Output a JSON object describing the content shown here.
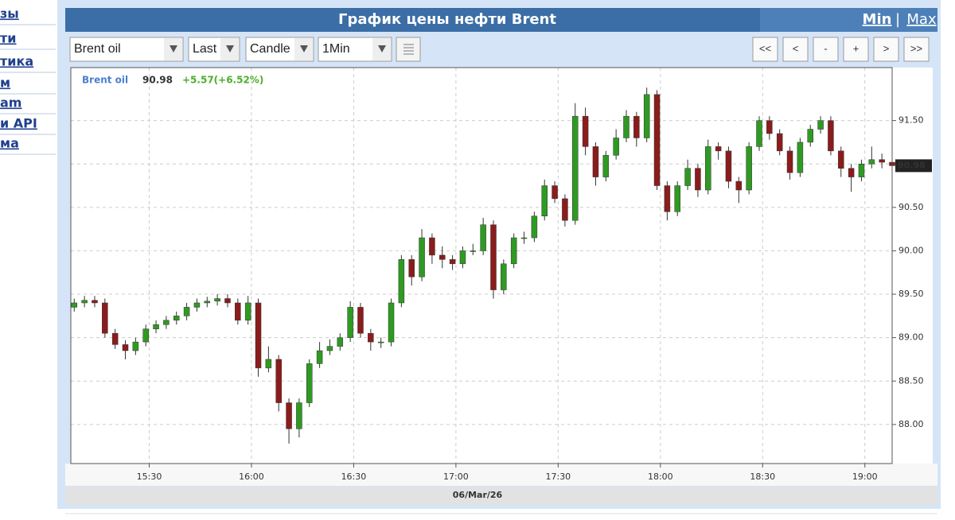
{
  "sidebar": {
    "links": [
      "зы",
      "ти",
      "тика",
      "м",
      "am",
      "и API",
      "ма"
    ]
  },
  "header": {
    "title": "График цены нефти Brent",
    "min": "Min",
    "separator": "|",
    "max": "Max"
  },
  "toolbar": {
    "selects": [
      "Brent oil",
      "Last",
      "Candle",
      "1Min"
    ],
    "buttons": [
      "<<",
      "<",
      "-",
      "+",
      ">",
      ">>"
    ]
  },
  "chart_data": {
    "type": "candlestick",
    "change_label": "+5.57(+6.52%)",
    "x_axis_label": "06/Mar/26",
    "x": [
      "15:08",
      "15:11",
      "15:14",
      "15:17",
      "15:20",
      "15:23",
      "15:26",
      "15:29",
      "15:32",
      "15:35",
      "15:38",
      "15:41",
      "15:44",
      "15:47",
      "15:50",
      "15:53",
      "15:56",
      "15:59",
      "16:02",
      "16:05",
      "16:08",
      "16:11",
      "16:14",
      "16:17",
      "16:20",
      "16:23",
      "16:26",
      "16:29",
      "16:32",
      "16:35",
      "16:38",
      "16:41",
      "16:44",
      "16:47",
      "16:50",
      "16:53",
      "16:56",
      "16:59",
      "17:02",
      "17:05",
      "17:08",
      "17:11",
      "17:14",
      "17:17",
      "17:20",
      "17:23",
      "17:26",
      "17:29",
      "17:32",
      "17:35",
      "17:38",
      "17:41",
      "17:44",
      "17:47",
      "17:50",
      "17:53",
      "17:56",
      "17:59",
      "18:02",
      "18:05",
      "18:08",
      "18:11",
      "18:14",
      "18:17",
      "18:20",
      "18:23",
      "18:26",
      "18:29",
      "18:32",
      "18:35",
      "18:38",
      "18:41",
      "18:44",
      "18:47",
      "18:50",
      "18:53",
      "18:56",
      "18:59",
      "19:02",
      "19:05",
      "19:08"
    ],
    "series": [
      {
        "name": "Brent oil",
        "up_color": "#2f9a22",
        "down_color": "#8b1c1c",
        "open": [
          89.35,
          89.4,
          89.43,
          89.4,
          89.05,
          88.92,
          88.85,
          88.95,
          89.1,
          89.15,
          89.2,
          89.25,
          89.35,
          89.4,
          89.42,
          89.45,
          89.4,
          89.2,
          89.4,
          88.65,
          88.75,
          88.25,
          87.95,
          88.25,
          88.7,
          88.85,
          88.9,
          89.0,
          89.35,
          89.05,
          88.95,
          88.95,
          89.4,
          89.9,
          89.7,
          90.15,
          89.95,
          89.9,
          89.85,
          90.0,
          90.0,
          90.3,
          89.55,
          89.85,
          90.15,
          90.15,
          90.4,
          90.75,
          90.6,
          90.35,
          91.55,
          91.2,
          90.85,
          91.1,
          91.3,
          91.55,
          91.3,
          91.8,
          90.75,
          90.45,
          90.75,
          90.95,
          90.7,
          91.2,
          91.15,
          90.8,
          90.7,
          91.2,
          91.5,
          91.35,
          91.15,
          90.9,
          91.25,
          91.4,
          91.5,
          91.15,
          90.95,
          90.85,
          91.0,
          91.05,
          91.02
        ],
        "high": [
          89.45,
          89.48,
          89.48,
          89.45,
          89.1,
          88.97,
          89.0,
          89.15,
          89.2,
          89.25,
          89.3,
          89.4,
          89.45,
          89.47,
          89.5,
          89.5,
          89.45,
          89.48,
          89.45,
          88.9,
          88.8,
          88.3,
          88.3,
          88.75,
          88.95,
          88.98,
          89.05,
          89.42,
          89.4,
          89.1,
          89.0,
          89.45,
          89.95,
          89.95,
          90.25,
          90.2,
          90.05,
          89.95,
          90.05,
          90.08,
          90.38,
          90.35,
          89.9,
          90.2,
          90.22,
          90.45,
          90.82,
          90.8,
          90.65,
          91.7,
          91.65,
          91.25,
          91.15,
          91.4,
          91.62,
          91.6,
          91.88,
          91.85,
          90.8,
          90.8,
          91.05,
          91.0,
          91.28,
          91.25,
          91.2,
          90.85,
          91.25,
          91.55,
          91.55,
          91.4,
          91.2,
          91.3,
          91.45,
          91.55,
          91.55,
          91.2,
          91.0,
          91.05,
          91.2,
          91.12,
          91.08
        ],
        "low": [
          89.3,
          89.35,
          89.35,
          89.0,
          88.87,
          88.75,
          88.8,
          88.9,
          89.05,
          89.1,
          89.15,
          89.2,
          89.3,
          89.35,
          89.37,
          89.35,
          89.15,
          89.15,
          88.55,
          88.6,
          88.15,
          87.78,
          87.85,
          88.2,
          88.65,
          88.8,
          88.85,
          88.95,
          89.0,
          88.85,
          88.88,
          88.9,
          89.35,
          89.6,
          89.65,
          89.85,
          89.8,
          89.78,
          89.8,
          89.95,
          89.95,
          89.45,
          89.5,
          89.8,
          90.08,
          90.1,
          90.35,
          90.55,
          90.28,
          90.3,
          91.1,
          90.75,
          90.8,
          91.05,
          91.25,
          91.2,
          91.25,
          90.7,
          90.35,
          90.4,
          90.7,
          90.62,
          90.65,
          91.05,
          90.72,
          90.55,
          90.65,
          91.15,
          91.28,
          91.1,
          90.82,
          90.85,
          91.2,
          91.35,
          91.1,
          90.85,
          90.68,
          90.8,
          90.95,
          90.95,
          90.9
        ],
        "close": [
          89.4,
          89.43,
          89.4,
          89.05,
          88.92,
          88.85,
          88.95,
          89.1,
          89.15,
          89.2,
          89.25,
          89.35,
          89.4,
          89.42,
          89.45,
          89.4,
          89.2,
          89.4,
          88.65,
          88.75,
          88.25,
          87.95,
          88.25,
          88.7,
          88.85,
          88.9,
          89.0,
          89.35,
          89.05,
          88.95,
          88.95,
          89.4,
          89.9,
          89.7,
          90.15,
          89.95,
          89.9,
          89.85,
          90.0,
          90.0,
          90.3,
          89.55,
          89.85,
          90.15,
          90.15,
          90.4,
          90.75,
          90.6,
          90.35,
          91.55,
          91.2,
          90.85,
          91.1,
          91.3,
          91.55,
          91.3,
          91.8,
          90.75,
          90.45,
          90.75,
          90.95,
          90.7,
          91.2,
          91.15,
          90.8,
          90.7,
          91.2,
          91.5,
          91.35,
          91.15,
          90.9,
          91.25,
          91.4,
          91.5,
          91.15,
          90.95,
          90.85,
          91.0,
          91.05,
          91.02,
          90.98
        ]
      }
    ],
    "xlim": [
      "15:07",
      "19:08"
    ],
    "xticks": [
      "15:30",
      "16:00",
      "16:30",
      "17:00",
      "17:30",
      "18:00",
      "18:30",
      "19:00"
    ],
    "ylim": [
      87.55,
      92.11
    ],
    "yticks": [
      {
        "value": 88,
        "label": "88.00"
      },
      {
        "value": 88.5,
        "label": "88.50"
      },
      {
        "value": 89,
        "label": "89.00"
      },
      {
        "value": 89.5,
        "label": "89.50"
      },
      {
        "value": 90,
        "label": "90.00"
      },
      {
        "value": 90.5,
        "label": "90.50"
      },
      {
        "value": 91,
        "label": "91.00"
      },
      {
        "value": 91.5,
        "label": "91.50"
      }
    ],
    "grid": true
  }
}
